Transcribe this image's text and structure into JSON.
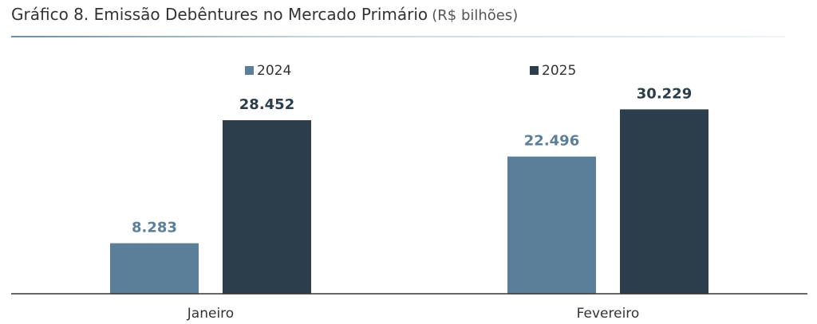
{
  "title": "Gráfico 8. Emissão Debêntures no Mercado Primário",
  "title_unit": "(R$ bilhões)",
  "colors": {
    "series_2024": "#5b7f98",
    "series_2025": "#2c3d4b",
    "axis": "#333333"
  },
  "chart_data": {
    "type": "bar",
    "categories": [
      "Janeiro",
      "Fevereiro"
    ],
    "series": [
      {
        "name": "2024",
        "values": [
          8.283,
          22.496
        ],
        "labels": [
          "8.283",
          "22.496"
        ]
      },
      {
        "name": "2025",
        "values": [
          28.452,
          30.229
        ],
        "labels": [
          "28.452",
          "30.229"
        ]
      }
    ],
    "ylim": [
      0,
      34
    ],
    "grid": false,
    "legend": "top"
  }
}
